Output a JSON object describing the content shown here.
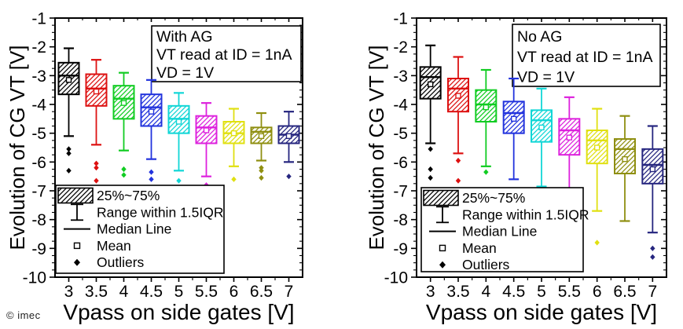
{
  "page": {
    "watermark": "© imec",
    "background": "#ffffff"
  },
  "chart_data": [
    {
      "type": "box",
      "title": "With AG",
      "annotation": [
        "With AG",
        "VT read at ID = 1nA",
        "VD = 1V"
      ],
      "xlabel": "Vpass on side gates [V]",
      "ylabel": "Evolution of CG VT [V]",
      "ylim": [
        -10,
        -1
      ],
      "ytick_step": 1,
      "grid": false,
      "legend_position": "bottom-left",
      "categories": [
        "3",
        "3.5",
        "4",
        "4.5",
        "5",
        "5.5",
        "6",
        "6.5",
        "7"
      ],
      "legend": [
        {
          "marker": "box-hatch",
          "label": "25%~75%"
        },
        {
          "marker": "range-bar",
          "label": "Range within 1.5IQR"
        },
        {
          "marker": "median-line",
          "label": "Median Line"
        },
        {
          "marker": "mean-square",
          "label": "Mean"
        },
        {
          "marker": "outlier-diamond",
          "label": "Outliers"
        }
      ],
      "series": [
        {
          "x": "3",
          "color": "#000000",
          "whisker_high": -2.05,
          "q3": -2.55,
          "median": -3.0,
          "q1": -3.65,
          "whisker_low": -5.1,
          "mean": -3.15,
          "outliers": [
            -5.55,
            -5.7,
            -6.3
          ]
        },
        {
          "x": "3.5",
          "color": "#dd1111",
          "whisker_high": -2.45,
          "q3": -2.95,
          "median": -3.45,
          "q1": -4.05,
          "whisker_low": -5.4,
          "mean": -3.55,
          "outliers": [
            -6.05,
            -6.2,
            -6.65
          ]
        },
        {
          "x": "4",
          "color": "#11cc22",
          "whisker_high": -2.9,
          "q3": -3.35,
          "median": -3.8,
          "q1": -4.5,
          "whisker_low": -5.6,
          "mean": -3.95,
          "outliers": [
            -6.25,
            -6.45
          ]
        },
        {
          "x": "4.5",
          "color": "#2233dd",
          "whisker_high": -3.15,
          "q3": -3.65,
          "median": -4.1,
          "q1": -4.75,
          "whisker_low": -5.9,
          "mean": -4.25,
          "outliers": [
            -6.35,
            -6.6
          ]
        },
        {
          "x": "5",
          "color": "#11d6d6",
          "whisker_high": -3.6,
          "q3": -4.05,
          "median": -4.5,
          "q1": -5.0,
          "whisker_low": -6.3,
          "mean": -4.6,
          "outliers": [
            -6.65
          ]
        },
        {
          "x": "5.5",
          "color": "#dd22dd",
          "whisker_high": -3.95,
          "q3": -4.4,
          "median": -4.8,
          "q1": -5.35,
          "whisker_low": -6.5,
          "mean": -4.9,
          "outliers": [
            -6.8
          ]
        },
        {
          "x": "6",
          "color": "#e0e011",
          "whisker_high": -4.15,
          "q3": -4.6,
          "median": -5.0,
          "q1": -5.35,
          "whisker_low": -6.15,
          "mean": -5.0,
          "outliers": [
            -6.6
          ]
        },
        {
          "x": "6.5",
          "color": "#8f8f11",
          "whisker_high": -4.3,
          "q3": -4.8,
          "median": -4.95,
          "q1": -5.35,
          "whisker_low": -5.95,
          "mean": -5.1,
          "outliers": [
            -6.2,
            -6.3,
            -6.55
          ]
        },
        {
          "x": "7",
          "color": "#26267f",
          "whisker_high": -4.25,
          "q3": -4.75,
          "median": -5.05,
          "q1": -5.35,
          "whisker_low": -6.0,
          "mean": -5.1,
          "outliers": [
            -6.5
          ]
        }
      ]
    },
    {
      "type": "box",
      "title": "No AG",
      "annotation": [
        "No AG",
        "VT read at ID = 1nA",
        "VD = 1V"
      ],
      "xlabel": "Vpass on side gates [V]",
      "ylabel": "Evolution of CG VT [V]",
      "ylim": [
        -10,
        -1
      ],
      "ytick_step": 1,
      "grid": false,
      "legend_position": "bottom-left",
      "categories": [
        "3",
        "3.5",
        "4",
        "4.5",
        "5",
        "5.5",
        "6",
        "6.5",
        "7"
      ],
      "legend": [
        {
          "marker": "box-hatch",
          "label": "25%~75%"
        },
        {
          "marker": "range-bar",
          "label": "Range within 1.5IQR"
        },
        {
          "marker": "median-line",
          "label": "Median Line"
        },
        {
          "marker": "mean-square",
          "label": "Mean"
        },
        {
          "marker": "outlier-diamond",
          "label": "Outliers"
        }
      ],
      "series": [
        {
          "x": "3",
          "color": "#000000",
          "whisker_high": -1.95,
          "q3": -2.7,
          "median": -3.05,
          "q1": -3.8,
          "whisker_low": -5.35,
          "mean": -3.3,
          "outliers": [
            -5.55,
            -6.25,
            -6.55
          ]
        },
        {
          "x": "3.5",
          "color": "#dd1111",
          "whisker_high": -2.35,
          "q3": -3.1,
          "median": -3.45,
          "q1": -4.25,
          "whisker_low": -5.7,
          "mean": -3.7,
          "outliers": [
            -5.95,
            -6.65
          ]
        },
        {
          "x": "4",
          "color": "#11cc22",
          "whisker_high": -2.8,
          "q3": -3.5,
          "median": -4.0,
          "q1": -4.6,
          "whisker_low": -6.15,
          "mean": -4.1,
          "outliers": [
            -6.35
          ]
        },
        {
          "x": "4.5",
          "color": "#2233dd",
          "whisker_high": -3.1,
          "q3": -3.9,
          "median": -4.3,
          "q1": -5.0,
          "whisker_low": -6.6,
          "mean": -4.5,
          "outliers": []
        },
        {
          "x": "5",
          "color": "#11d6d6",
          "whisker_high": -3.45,
          "q3": -4.2,
          "median": -4.55,
          "q1": -5.3,
          "whisker_low": -6.85,
          "mean": -4.8,
          "outliers": []
        },
        {
          "x": "5.5",
          "color": "#dd22dd",
          "whisker_high": -3.75,
          "q3": -4.5,
          "median": -4.9,
          "q1": -5.75,
          "whisker_low": -7.0,
          "mean": -5.15,
          "outliers": []
        },
        {
          "x": "6",
          "color": "#e0e011",
          "whisker_high": -4.15,
          "q3": -4.9,
          "median": -5.25,
          "q1": -6.05,
          "whisker_low": -7.7,
          "mean": -5.5,
          "outliers": [
            -8.8
          ]
        },
        {
          "x": "6.5",
          "color": "#8f8f11",
          "whisker_high": -4.4,
          "q3": -5.2,
          "median": -5.55,
          "q1": -6.4,
          "whisker_low": -8.05,
          "mean": -5.9,
          "outliers": []
        },
        {
          "x": "7",
          "color": "#26267f",
          "whisker_high": -4.75,
          "q3": -5.55,
          "median": -6.1,
          "q1": -6.75,
          "whisker_low": -8.45,
          "mean": -6.25,
          "outliers": [
            -9.0,
            -9.3
          ]
        }
      ]
    }
  ]
}
